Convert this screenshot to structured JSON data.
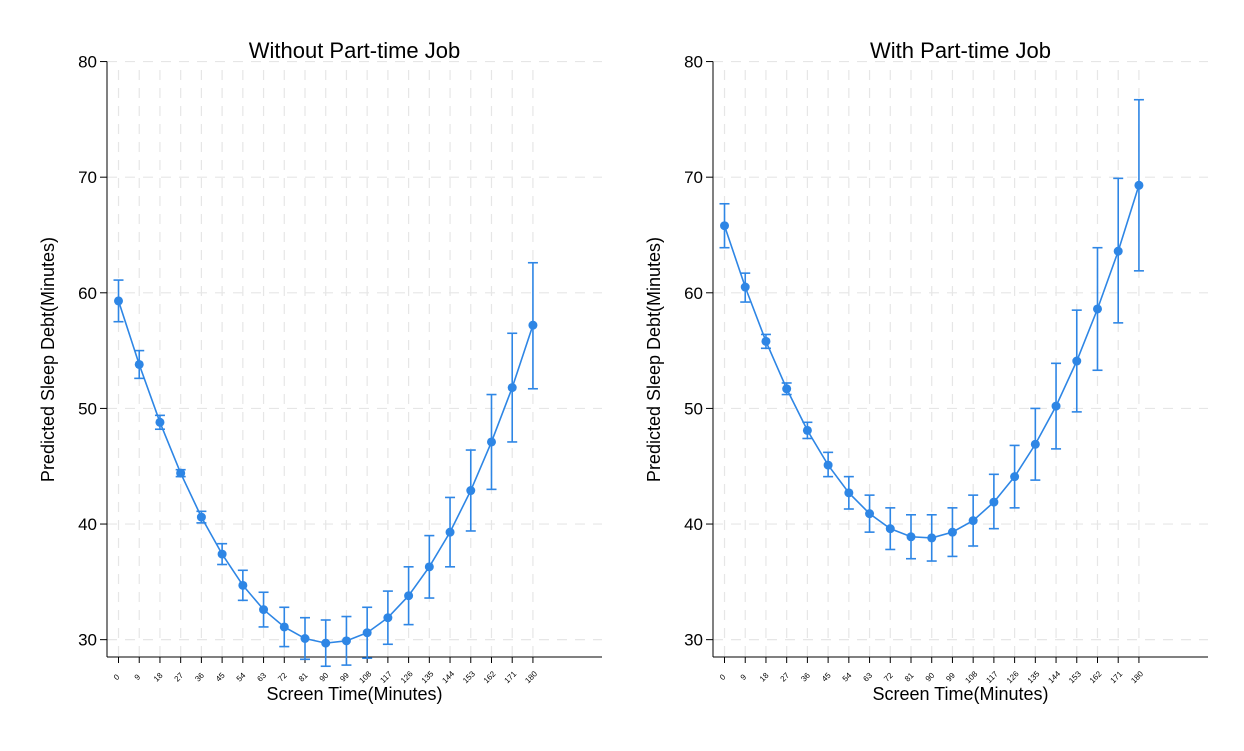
{
  "chart_data": [
    {
      "type": "line",
      "title": "Without Part-time Job",
      "xlabel": "Screen Time(Minutes)",
      "ylabel": "Predicted Sleep Debt(Minutes)",
      "xticks": [
        0,
        9,
        18,
        27,
        36,
        45,
        54,
        63,
        72,
        81,
        90,
        99,
        108,
        117,
        126,
        135,
        144,
        153,
        162,
        171,
        180
      ],
      "yticks": [
        30,
        40,
        50,
        60,
        70,
        80
      ],
      "xlim": [
        -5,
        210
      ],
      "ylim": [
        28.5,
        81
      ],
      "grid": true,
      "series": [
        {
          "color": "#2e86e5",
          "x": [
            0,
            9,
            18,
            27,
            36,
            45,
            54,
            63,
            72,
            81,
            90,
            99,
            108,
            117,
            126,
            135,
            144,
            153,
            162,
            171,
            180
          ],
          "y": [
            59.3,
            53.8,
            48.8,
            44.4,
            40.6,
            37.4,
            34.7,
            32.6,
            31.1,
            30.1,
            29.7,
            29.9,
            30.6,
            31.9,
            33.8,
            36.3,
            39.3,
            42.9,
            47.1,
            51.8,
            57.2
          ],
          "ci_low": [
            57.5,
            52.6,
            48.2,
            44.1,
            40.1,
            36.5,
            33.4,
            31.1,
            29.4,
            28.3,
            27.7,
            27.8,
            28.4,
            29.6,
            31.3,
            33.6,
            36.3,
            39.4,
            43.0,
            47.1,
            51.7
          ],
          "ci_high": [
            61.1,
            55.0,
            49.4,
            44.7,
            41.1,
            38.3,
            36.0,
            34.1,
            32.8,
            31.9,
            31.7,
            32.0,
            32.8,
            34.2,
            36.3,
            39.0,
            42.3,
            46.4,
            51.2,
            56.5,
            62.6
          ]
        }
      ]
    },
    {
      "type": "line",
      "title": "With Part-time Job",
      "xlabel": "Screen Time(Minutes)",
      "ylabel": "Predicted Sleep Debt(Minutes)",
      "xticks": [
        0,
        9,
        18,
        27,
        36,
        45,
        54,
        63,
        72,
        81,
        90,
        99,
        108,
        117,
        126,
        135,
        144,
        153,
        162,
        171,
        180
      ],
      "yticks": [
        30,
        40,
        50,
        60,
        70,
        80
      ],
      "xlim": [
        -5,
        210
      ],
      "ylim": [
        28.5,
        81
      ],
      "grid": true,
      "series": [
        {
          "color": "#2e86e5",
          "x": [
            0,
            9,
            18,
            27,
            36,
            45,
            54,
            63,
            72,
            81,
            90,
            99,
            108,
            117,
            126,
            135,
            144,
            153,
            162,
            171,
            180
          ],
          "y": [
            65.8,
            60.5,
            55.8,
            51.7,
            48.1,
            45.1,
            42.7,
            40.9,
            39.6,
            38.9,
            38.8,
            39.3,
            40.3,
            41.9,
            44.1,
            46.9,
            50.2,
            54.1,
            58.6,
            63.6,
            69.3
          ],
          "ci_low": [
            63.9,
            59.2,
            55.2,
            51.2,
            47.4,
            44.1,
            41.3,
            39.3,
            37.8,
            37.0,
            36.8,
            37.2,
            38.1,
            39.6,
            41.4,
            43.8,
            46.5,
            49.7,
            53.3,
            57.4,
            61.9
          ],
          "ci_high": [
            67.7,
            61.7,
            56.4,
            52.2,
            48.8,
            46.2,
            44.1,
            42.5,
            41.4,
            40.8,
            40.8,
            41.4,
            42.5,
            44.3,
            46.8,
            50.0,
            53.9,
            58.5,
            63.9,
            69.9,
            76.7
          ]
        }
      ]
    }
  ]
}
